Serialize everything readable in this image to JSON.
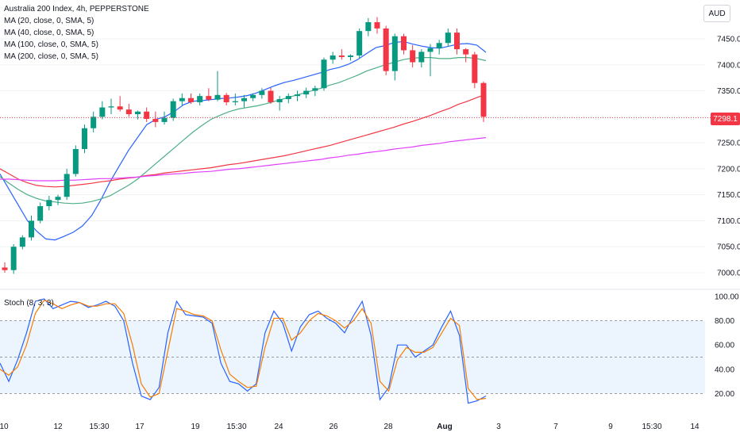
{
  "chart_data": [
    {
      "type": "candlestick",
      "title": "Australia 200 Index, 4h, PEPPERSTONE",
      "currency": "AUD",
      "last_price": "7298.1",
      "ylim": [
        6980,
        7530
      ],
      "y_ticks": [
        "7450.0",
        "7400.0",
        "7350.0",
        "7300.0",
        "7250.0",
        "7200.0",
        "7150.0",
        "7100.0",
        "7050.0",
        "7000.0"
      ],
      "x_ticks": [
        "10",
        "12",
        "15:30",
        "17",
        "19",
        "15:30",
        "24",
        "26",
        "28",
        "Aug",
        "3",
        "7",
        "9",
        "15:30",
        "14"
      ],
      "moving_averages": [
        {
          "label": "MA (20, close, 0, SMA, 5)",
          "color": "#2962ff",
          "values": [
            7190,
            7160,
            7130,
            7100,
            7080,
            7065,
            7063,
            7070,
            7078,
            7090,
            7110,
            7140,
            7175,
            7205,
            7235,
            7260,
            7285,
            7295,
            7300,
            7310,
            7323,
            7330,
            7331,
            7333,
            7335,
            7336,
            7338,
            7341,
            7346,
            7353,
            7360,
            7366,
            7370,
            7375,
            7380,
            7385,
            7391,
            7395,
            7401,
            7410,
            7422,
            7433,
            7437,
            7443,
            7445,
            7440,
            7436,
            7433,
            7432,
            7436,
            7440,
            7441,
            7438,
            7424
          ]
        },
        {
          "label": "MA (40, close, 0, SMA, 5)",
          "color": "#4caf87",
          "values": [
            7185,
            7172,
            7160,
            7150,
            7143,
            7138,
            7136,
            7134,
            7133,
            7134,
            7137,
            7142,
            7148,
            7158,
            7168,
            7180,
            7195,
            7210,
            7225,
            7240,
            7255,
            7270,
            7283,
            7295,
            7303,
            7310,
            7315,
            7318,
            7321,
            7325,
            7330,
            7335,
            7340,
            7345,
            7350,
            7355,
            7361,
            7366,
            7373,
            7380,
            7388,
            7394,
            7400,
            7405,
            7410,
            7413,
            7414,
            7414,
            7412,
            7412,
            7414,
            7414,
            7412,
            7408
          ]
        },
        {
          "label": "MA (100, close, 0, SMA, 5)",
          "color": "#f23645",
          "values": [
            7200,
            7190,
            7180,
            7173,
            7168,
            7166,
            7165,
            7166,
            7168,
            7170,
            7172,
            7175,
            7177,
            7180,
            7182,
            7184,
            7187,
            7189,
            7192,
            7194,
            7196,
            7198,
            7200,
            7202,
            7205,
            7208,
            7210,
            7213,
            7216,
            7219,
            7222,
            7225,
            7229,
            7233,
            7237,
            7241,
            7245,
            7250,
            7255,
            7260,
            7265,
            7270,
            7275,
            7280,
            7286,
            7291,
            7297,
            7303,
            7310,
            7316,
            7324,
            7330,
            7337,
            7343
          ]
        },
        {
          "label": "MA (200, close, 0, SMA, 5)",
          "color": "#e040fb",
          "values": [
            7180,
            7180,
            7179,
            7178,
            7177,
            7177,
            7177,
            7178,
            7178,
            7179,
            7180,
            7181,
            7181,
            7182,
            7183,
            7184,
            7186,
            7187,
            7189,
            7190,
            7191,
            7193,
            7194,
            7195,
            7197,
            7199,
            7200,
            7202,
            7204,
            7206,
            7208,
            7210,
            7212,
            7214,
            7216,
            7218,
            7221,
            7223,
            7226,
            7228,
            7231,
            7233,
            7235,
            7238,
            7240,
            7242,
            7245,
            7247,
            7249,
            7252,
            7254,
            7256,
            7258,
            7260
          ]
        }
      ],
      "candles": [
        [
          7010,
          7020,
          7000,
          7005
        ],
        [
          7005,
          7055,
          6998,
          7050
        ],
        [
          7050,
          7072,
          7045,
          7068
        ],
        [
          7068,
          7110,
          7062,
          7100
        ],
        [
          7100,
          7135,
          7095,
          7128
        ],
        [
          7128,
          7148,
          7120,
          7140
        ],
        [
          7140,
          7150,
          7130,
          7146
        ],
        [
          7146,
          7200,
          7140,
          7190
        ],
        [
          7190,
          7245,
          7185,
          7238
        ],
        [
          7238,
          7285,
          7230,
          7278
        ],
        [
          7278,
          7310,
          7270,
          7300
        ],
        [
          7300,
          7330,
          7295,
          7318
        ],
        [
          7318,
          7335,
          7305,
          7320
        ],
        [
          7320,
          7340,
          7310,
          7314
        ],
        [
          7314,
          7325,
          7300,
          7305
        ],
        [
          7305,
          7312,
          7295,
          7310
        ],
        [
          7310,
          7318,
          7290,
          7296
        ],
        [
          7296,
          7310,
          7280,
          7290
        ],
        [
          7290,
          7310,
          7285,
          7298
        ],
        [
          7298,
          7335,
          7292,
          7330
        ],
        [
          7330,
          7345,
          7322,
          7336
        ],
        [
          7336,
          7345,
          7325,
          7328
        ],
        [
          7328,
          7345,
          7322,
          7340
        ],
        [
          7340,
          7355,
          7330,
          7333
        ],
        [
          7333,
          7388,
          7330,
          7342
        ],
        [
          7342,
          7346,
          7322,
          7328
        ],
        [
          7328,
          7345,
          7322,
          7330
        ],
        [
          7330,
          7342,
          7318,
          7336
        ],
        [
          7336,
          7345,
          7330,
          7342
        ],
        [
          7342,
          7355,
          7335,
          7350
        ],
        [
          7350,
          7356,
          7325,
          7328
        ],
        [
          7328,
          7340,
          7312,
          7334
        ],
        [
          7334,
          7345,
          7326,
          7340
        ],
        [
          7340,
          7350,
          7330,
          7343
        ],
        [
          7343,
          7356,
          7336,
          7350
        ],
        [
          7350,
          7360,
          7340,
          7355
        ],
        [
          7355,
          7414,
          7350,
          7410
        ],
        [
          7410,
          7425,
          7402,
          7418
        ],
        [
          7418,
          7430,
          7410,
          7415
        ],
        [
          7415,
          7420,
          7408,
          7418
        ],
        [
          7418,
          7470,
          7412,
          7465
        ],
        [
          7465,
          7490,
          7455,
          7482
        ],
        [
          7482,
          7492,
          7460,
          7470
        ],
        [
          7470,
          7475,
          7380,
          7388
        ],
        [
          7388,
          7460,
          7370,
          7455
        ],
        [
          7455,
          7460,
          7420,
          7428
        ],
        [
          7428,
          7438,
          7395,
          7405
        ],
        [
          7405,
          7430,
          7395,
          7425
        ],
        [
          7425,
          7440,
          7378,
          7432
        ],
        [
          7432,
          7448,
          7420,
          7442
        ],
        [
          7442,
          7470,
          7435,
          7462
        ],
        [
          7462,
          7470,
          7420,
          7430
        ],
        [
          7430,
          7432,
          7405,
          7420
        ],
        [
          7420,
          7425,
          7355,
          7365
        ],
        [
          7365,
          7368,
          7290,
          7300
        ]
      ]
    },
    {
      "type": "line",
      "title": "Stoch (8, 3, 3)",
      "ylim": [
        0,
        100
      ],
      "y_ticks": [
        "100.00",
        "80.00",
        "60.00",
        "40.00",
        "20.00"
      ],
      "levels": [
        80,
        50,
        20
      ],
      "series": [
        {
          "color": "#2962ff",
          "values": [
            45,
            30,
            48,
            70,
            96,
            98,
            90,
            93,
            96,
            95,
            91,
            93,
            96,
            92,
            80,
            45,
            18,
            15,
            25,
            70,
            96,
            85,
            84,
            83,
            78,
            45,
            30,
            28,
            22,
            28,
            70,
            88,
            78,
            55,
            75,
            85,
            88,
            82,
            78,
            70,
            84,
            96,
            68,
            15,
            25,
            60,
            60,
            50,
            55,
            60,
            75,
            88,
            68,
            12,
            14,
            18
          ]
        },
        {
          "color": "#f57c00",
          "values": [
            40,
            35,
            42,
            60,
            86,
            97,
            94,
            90,
            93,
            95,
            92,
            92,
            94,
            94,
            86,
            60,
            28,
            17,
            20,
            55,
            90,
            88,
            85,
            84,
            80,
            56,
            36,
            30,
            25,
            26,
            58,
            82,
            82,
            64,
            70,
            80,
            86,
            84,
            80,
            74,
            80,
            90,
            78,
            30,
            22,
            48,
            58,
            54,
            54,
            58,
            70,
            82,
            76,
            24,
            15,
            16
          ]
        }
      ]
    }
  ]
}
